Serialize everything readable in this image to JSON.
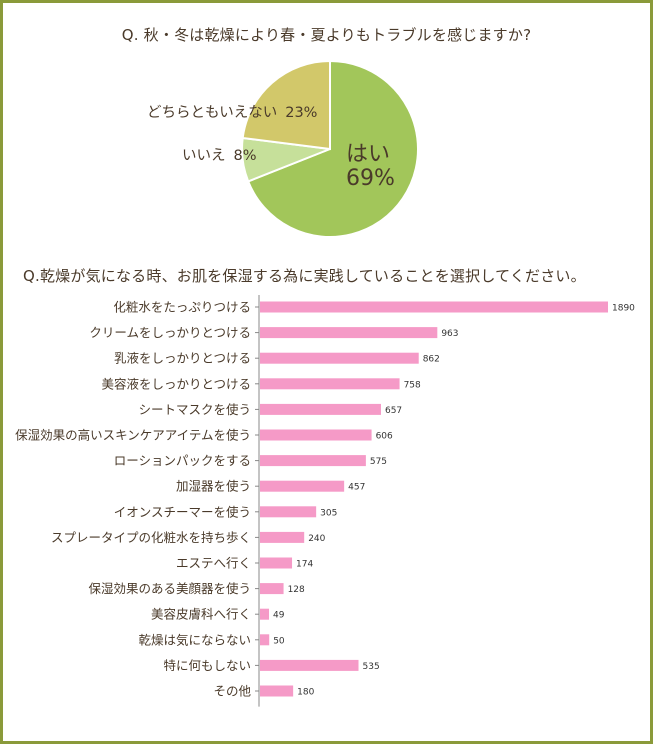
{
  "pie_section": {
    "title": "Q. 秋・冬は乾燥により春・夏よりもトラブルを感じますか?"
  },
  "bar_section": {
    "title": "Q.乾燥が気になる時、お肌を保湿する為に実践していることを選択してください。"
  },
  "colors": {
    "frame": "#8a9a3a",
    "pie_yes": "#a2c65a",
    "pie_no": "#c6e09a",
    "pie_neither": "#d2c86a",
    "bar": "#f59ac7",
    "text": "#4a3a2a"
  },
  "chart_data": [
    {
      "type": "pie",
      "title": "Q. 秋・冬は乾燥により春・夏よりもトラブルを感じますか?",
      "slices": [
        {
          "label": "はい",
          "value": 69,
          "display": "69%"
        },
        {
          "label": "いいえ",
          "value": 8,
          "display": "8%"
        },
        {
          "label": "どちらともいえない",
          "value": 23,
          "display": "23%"
        }
      ]
    },
    {
      "type": "bar",
      "orientation": "horizontal",
      "title": "Q.乾燥が気になる時、お肌を保湿する為に実践していることを選択してください。",
      "categories": [
        "化粧水をたっぷりつける",
        "クリームをしっかりとつける",
        "乳液をしっかりとつける",
        "美容液をしっかりとつける",
        "シートマスクを使う",
        "保湿効果の高いスキンケアアイテムを使う",
        "ローションパックをする",
        "加湿器を使う",
        "イオンスチーマーを使う",
        "スプレータイプの化粧水を持ち歩く",
        "エステへ行く",
        "保湿効果のある美顔器を使う",
        "美容皮膚科へ行く",
        "乾燥は気にならない",
        "特に何もしない",
        "その他"
      ],
      "values": [
        1890,
        963,
        862,
        758,
        657,
        606,
        575,
        457,
        305,
        240,
        174,
        128,
        49,
        50,
        535,
        180
      ],
      "xlim": [
        0,
        1890
      ]
    }
  ]
}
